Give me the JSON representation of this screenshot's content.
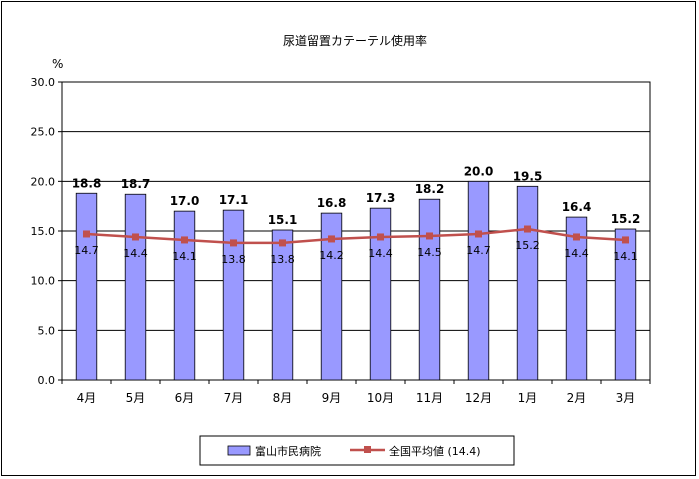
{
  "chart_data": {
    "type": "bar",
    "title": "尿道留置カテーテル使用率",
    "ylabel": "%",
    "xlabel": "",
    "ylim": [
      0,
      30
    ],
    "yticks": [
      "0.0",
      "5.0",
      "10.0",
      "15.0",
      "20.0",
      "25.0",
      "30.0"
    ],
    "grid": true,
    "legend_position": "bottom",
    "categories": [
      "4月",
      "5月",
      "6月",
      "7月",
      "8月",
      "9月",
      "10月",
      "11月",
      "12月",
      "1月",
      "2月",
      "3月"
    ],
    "series": [
      {
        "name": "富山市民病院",
        "type": "bar",
        "color": "#9999ff",
        "values": [
          18.8,
          18.7,
          17.0,
          17.1,
          15.1,
          16.8,
          17.3,
          18.2,
          20.0,
          19.5,
          16.4,
          15.2
        ],
        "labels": [
          "18.8",
          "18.7",
          "17.0",
          "17.1",
          "15.1",
          "16.8",
          "17.3",
          "18.2",
          "20.0",
          "19.5",
          "16.4",
          "15.2"
        ]
      },
      {
        "name": "全国平均値 (14.4)",
        "type": "line",
        "color": "#c0504d",
        "values": [
          14.7,
          14.4,
          14.1,
          13.8,
          13.8,
          14.2,
          14.4,
          14.5,
          14.7,
          15.2,
          14.4,
          14.1
        ],
        "labels": [
          "14.7",
          "14.4",
          "14.1",
          "13.8",
          "13.8",
          "14.2",
          "14.4",
          "14.5",
          "14.7",
          "15.2",
          "14.4",
          "14.1"
        ]
      }
    ]
  }
}
